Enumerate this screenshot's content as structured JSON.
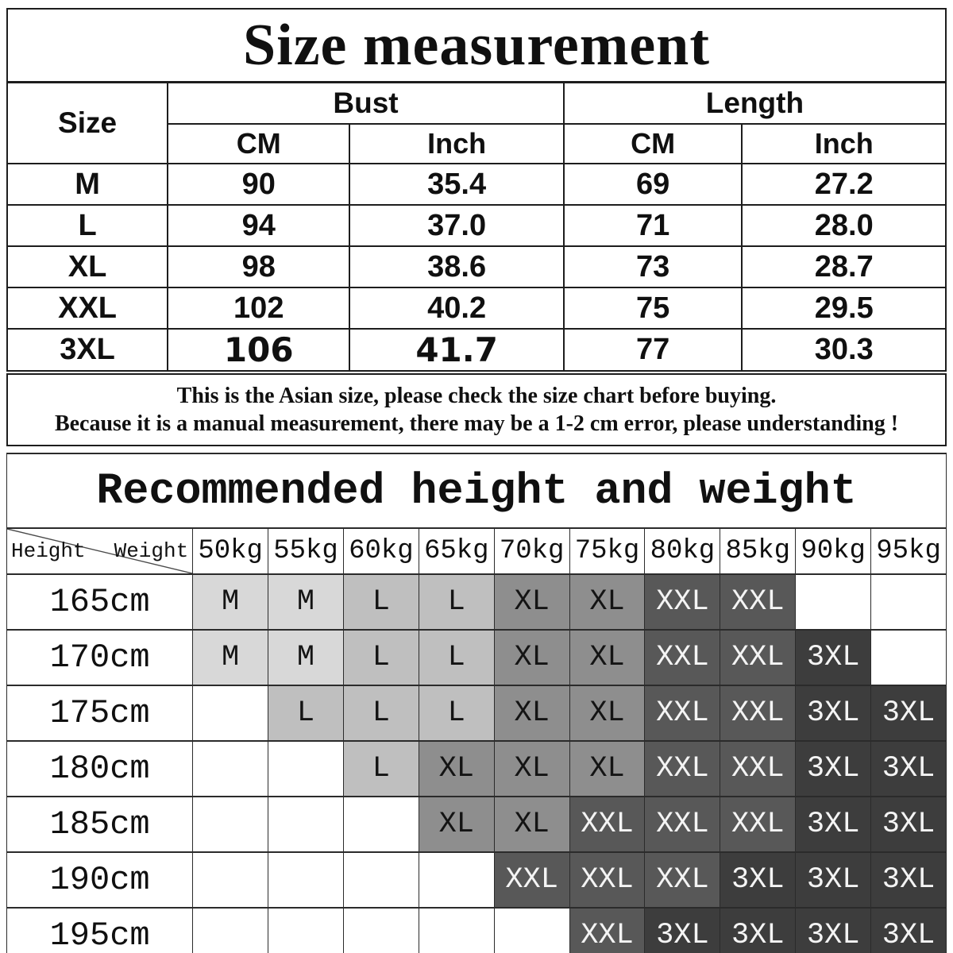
{
  "section1": {
    "title": "Size measurement",
    "header": {
      "size": "Size",
      "bust": "Bust",
      "length": "Length",
      "cm": "CM",
      "inch": "Inch"
    },
    "columns": [
      "size",
      "bust_cm",
      "bust_inch",
      "length_cm",
      "length_inch"
    ],
    "rows": [
      {
        "size": "M",
        "bust_cm": "90",
        "bust_inch": "35.4",
        "length_cm": "69",
        "length_inch": "27.2"
      },
      {
        "size": "L",
        "bust_cm": "94",
        "bust_inch": "37.0",
        "length_cm": "71",
        "length_inch": "28.0"
      },
      {
        "size": "XL",
        "bust_cm": "98",
        "bust_inch": "38.6",
        "length_cm": "73",
        "length_inch": "28.7"
      },
      {
        "size": "XXL",
        "bust_cm": "102",
        "bust_inch": "40.2",
        "length_cm": "75",
        "length_inch": "29.5"
      },
      {
        "size": "3XL",
        "bust_cm": "106",
        "bust_inch": "41.7",
        "length_cm": "77",
        "length_inch": "30.3",
        "alt_font_cells": [
          "bust_cm",
          "bust_inch"
        ]
      }
    ],
    "note_line1": "This is the Asian size, please check the size chart before buying.",
    "note_line2": "Because it is a manual measurement, there may be a 1-2 cm error, please understanding !"
  },
  "section2": {
    "title": "Recommended height and weight",
    "corner": {
      "height_label": "Height",
      "weight_label": "Weight"
    },
    "weight_headers": [
      "50kg",
      "55kg",
      "60kg",
      "65kg",
      "70kg",
      "75kg",
      "80kg",
      "85kg",
      "90kg",
      "95kg"
    ],
    "rows": [
      {
        "height": "165cm",
        "sizes": [
          "M",
          "M",
          "L",
          "L",
          "XL",
          "XL",
          "XXL",
          "XXL",
          "",
          ""
        ]
      },
      {
        "height": "170cm",
        "sizes": [
          "M",
          "M",
          "L",
          "L",
          "XL",
          "XL",
          "XXL",
          "XXL",
          "3XL",
          ""
        ]
      },
      {
        "height": "175cm",
        "sizes": [
          "",
          "L",
          "L",
          "L",
          "XL",
          "XL",
          "XXL",
          "XXL",
          "3XL",
          "3XL"
        ]
      },
      {
        "height": "180cm",
        "sizes": [
          "",
          "",
          "L",
          "XL",
          "XL",
          "XL",
          "XXL",
          "XXL",
          "3XL",
          "3XL"
        ]
      },
      {
        "height": "185cm",
        "sizes": [
          "",
          "",
          "",
          "XL",
          "XL",
          "XXL",
          "XXL",
          "XXL",
          "3XL",
          "3XL"
        ]
      },
      {
        "height": "190cm",
        "sizes": [
          "",
          "",
          "",
          "",
          "XXL",
          "XXL",
          "XXL",
          "3XL",
          "3XL",
          "3XL"
        ]
      },
      {
        "height": "195cm",
        "sizes": [
          "",
          "",
          "",
          "",
          "",
          "XXL",
          "3XL",
          "3XL",
          "3XL",
          "3XL"
        ]
      }
    ],
    "size_colors": {
      "M": {
        "bg": "#d8d8d8",
        "text": "#141414"
      },
      "L": {
        "bg": "#bfbfbf",
        "text": "#141414"
      },
      "XL": {
        "bg": "#8e8e8e",
        "text": "#141414"
      },
      "XXL": {
        "bg": "#585858",
        "text": "#f4f4f4"
      },
      "3XL": {
        "bg": "#3d3d3d",
        "text": "#f4f4f4"
      }
    }
  }
}
